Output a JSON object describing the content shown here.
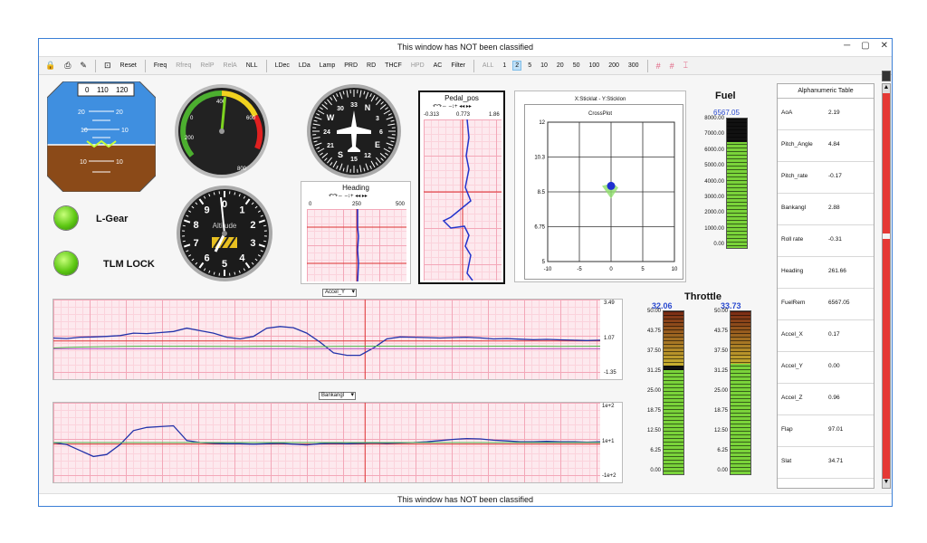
{
  "window": {
    "title": "This window has NOT been classified",
    "footer": "This window has NOT been classified"
  },
  "toolbar": {
    "items": [
      "Reset",
      "Freq",
      "Rfreq",
      "RelP",
      "RelA",
      "NLL",
      "LDec",
      "LDa",
      "Lamp",
      "PRD",
      "RD",
      "THCF",
      "HPD",
      "AC",
      "Filter",
      "ALL"
    ],
    "numbers": [
      "1",
      "2",
      "5",
      "10",
      "20",
      "50",
      "100",
      "200",
      "300"
    ],
    "selected_number": "2"
  },
  "attitude": {
    "tape_values": [
      "0",
      "110",
      "120"
    ],
    "pitch_labels": [
      "20",
      "10",
      "10",
      "20",
      "10"
    ]
  },
  "gauge1": {
    "ticks": [
      "200",
      "400",
      "600",
      "800",
      "0"
    ],
    "fraction": 0.52
  },
  "compass": {
    "labels": [
      "N",
      "3",
      "6",
      "E",
      "12",
      "15",
      "S",
      "21",
      "24",
      "W",
      "30",
      "33"
    ]
  },
  "altimeter": {
    "ticks": [
      "0",
      "1",
      "2",
      "3",
      "4",
      "5",
      "6",
      "7",
      "8",
      "9"
    ],
    "caption": "Altitude"
  },
  "indicators": [
    {
      "label": "L-Gear"
    },
    {
      "label": "TLM LOCK"
    }
  ],
  "heading_strip": {
    "title": "Heading",
    "scale": [
      "0",
      "250",
      "500"
    ],
    "controls": "↶↷⇔  ‒↕+  ◂◂ ▸▸"
  },
  "pedal_strip": {
    "title": "Pedal_pos",
    "scale": [
      "-0.313",
      "0.773",
      "1.86"
    ],
    "controls": "↶↷⇔  ‒↕+  ◂◂ ▸▸"
  },
  "crossplot": {
    "header": "X:Sticklat - Y:Sticklon",
    "chart_data": {
      "type": "scatter",
      "title": "CrossPlot",
      "xlim": [
        -10,
        10
      ],
      "ylim": [
        5,
        12
      ],
      "x_ticks": [
        "-10",
        "-5",
        "0",
        "5",
        "10"
      ],
      "y_ticks": [
        "12",
        "10.3",
        "8.5",
        "6.75",
        "5"
      ],
      "points": [
        {
          "x": 0,
          "y": 8.8
        }
      ]
    }
  },
  "fuel": {
    "title": "Fuel",
    "value": "6567.05",
    "fraction": 0.82,
    "scale": [
      "8000.00",
      "7000.00",
      "6000.00",
      "5000.00",
      "4000.00",
      "3000.00",
      "2000.00",
      "1000.00",
      "0.00"
    ]
  },
  "throttle": {
    "title": "Throttle",
    "left": {
      "value": "32.06",
      "fraction": 0.64
    },
    "right": {
      "value": "33.73",
      "fraction": 0.68
    },
    "scale": [
      "50.00",
      "43.75",
      "37.50",
      "31.25",
      "25.00",
      "18.75",
      "12.50",
      "6.25",
      "0.00"
    ]
  },
  "accel_chart": {
    "dropdown": "Accel_Y",
    "y_ticks": [
      "3.49",
      "1.07",
      "-1.35"
    ],
    "chart_data": {
      "type": "line",
      "ylim": [
        -1.35,
        3.49
      ],
      "series": [
        {
          "values": [
            1.15,
            1.12,
            1.2,
            1.22,
            1.25,
            1.3,
            1.45,
            1.42,
            1.48,
            1.55,
            1.75,
            1.6,
            1.45,
            1.2,
            1.1,
            1.25,
            1.75,
            1.85,
            1.78,
            1.45,
            0.9,
            0.25,
            0.1,
            0.1,
            0.55,
            1.1,
            1.22,
            1.2,
            1.18,
            1.15,
            1.18,
            1.2,
            1.16,
            1.1,
            1.12,
            1.08,
            1.05,
            1.07,
            1.04,
            1.02,
            1.0,
            1.02
          ]
        },
        {
          "values": [
            0.55,
            0.58,
            0.6,
            0.62,
            0.63,
            0.64,
            0.65,
            0.66,
            0.66,
            0.65,
            0.66,
            0.65,
            0.64,
            0.64,
            0.63,
            0.64,
            0.65,
            0.65,
            0.64,
            0.62,
            0.63,
            0.64,
            0.65,
            0.65,
            0.66,
            0.66,
            0.66,
            0.65,
            0.66,
            0.66,
            0.65,
            0.66,
            0.65,
            0.66,
            0.66,
            0.65,
            0.66,
            0.65,
            0.64,
            0.65,
            0.65,
            0.66
          ]
        },
        {
          "values": [
            0.5,
            0.5,
            0.5,
            0.5,
            0.5,
            0.5,
            0.5,
            0.5,
            0.5,
            0.5,
            0.5,
            0.5,
            0.5,
            0.5,
            0.5,
            0.5,
            0.5,
            0.5,
            0.5,
            0.5,
            0.5,
            0.5,
            0.5,
            0.5,
            0.5,
            0.5,
            0.5,
            0.5,
            0.5,
            0.5,
            0.5,
            0.5,
            0.5,
            0.5,
            0.5,
            0.5,
            0.5,
            0.5,
            0.5,
            0.5,
            0.5,
            0.5
          ]
        }
      ]
    }
  },
  "bank_chart": {
    "dropdown": "Bankangl",
    "y_ticks": [
      "1e+2",
      "1e+1",
      "-1e+2"
    ],
    "chart_data": {
      "type": "line",
      "ylim": [
        -100,
        100
      ],
      "series": [
        {
          "values": [
            0,
            -5,
            -20,
            -35,
            -30,
            -5,
            30,
            38,
            40,
            42,
            5,
            0,
            -2,
            -3,
            -3,
            -4,
            -3,
            -2,
            -4,
            -6,
            -3,
            -2,
            -3,
            -2,
            -1,
            -2,
            -1,
            0,
            2,
            5,
            8,
            10,
            9,
            6,
            4,
            2,
            2,
            3,
            2,
            2,
            1,
            2
          ]
        },
        {
          "values": [
            0,
            0,
            0,
            0,
            0,
            0,
            0,
            0,
            0,
            0,
            0,
            0,
            0,
            0,
            0,
            0,
            0,
            0,
            0,
            0,
            0,
            0,
            0,
            0,
            0,
            0,
            0,
            0,
            0,
            0,
            0,
            0,
            0,
            0,
            0,
            0,
            0,
            0,
            0,
            0,
            0,
            0
          ]
        }
      ]
    }
  },
  "alpha_table": {
    "title": "Alphanumeric Table",
    "rows": [
      {
        "name": "AoA",
        "value": "2.19"
      },
      {
        "name": "Pitch_Angle",
        "value": "4.84"
      },
      {
        "name": "Pitch_rate",
        "value": "-0.17"
      },
      {
        "name": "Bankangl",
        "value": "2.88"
      },
      {
        "name": "Roll rate",
        "value": "-0.31"
      },
      {
        "name": "Heading",
        "value": "261.66"
      },
      {
        "name": "FuelRem",
        "value": "6567.05"
      },
      {
        "name": "Accel_X",
        "value": "0.17"
      },
      {
        "name": "Accel_Y",
        "value": "0.00"
      },
      {
        "name": "Accel_Z",
        "value": "0.96"
      },
      {
        "name": "Flap",
        "value": "97.01"
      },
      {
        "name": "Slat",
        "value": "34.71"
      }
    ]
  }
}
